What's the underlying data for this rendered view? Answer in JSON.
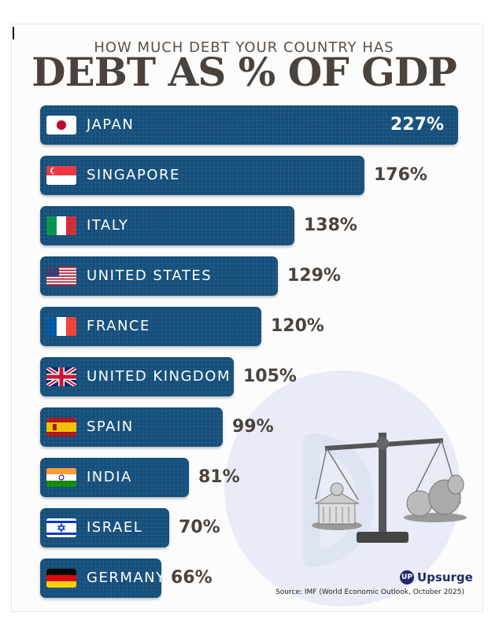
{
  "header": {
    "subtitle": "HOW MUCH DEBT YOUR COUNTRY HAS",
    "title": "DEBT AS % OF GDP"
  },
  "colors": {
    "bar": "#154f7b",
    "value_text": "#4a423c",
    "title_text": "#4a423c"
  },
  "chart_data": {
    "type": "bar",
    "orientation": "horizontal",
    "title": "DEBT AS % OF GDP",
    "subtitle": "HOW MUCH DEBT YOUR COUNTRY HAS",
    "categories": [
      "JAPAN",
      "SINGAPORE",
      "ITALY",
      "UNITED STATES",
      "FRANCE",
      "UNITED KINGDOM",
      "SPAIN",
      "INDIA",
      "ISRAEL",
      "GERMANY"
    ],
    "values": [
      227,
      176,
      138,
      129,
      120,
      105,
      99,
      81,
      70,
      66
    ],
    "value_labels": [
      "227%",
      "176%",
      "138%",
      "129%",
      "120%",
      "105%",
      "99%",
      "81%",
      "70%",
      "66%"
    ],
    "flags": [
      "japan-flag",
      "singapore-flag",
      "italy-flag",
      "us-flag",
      "france-flag",
      "uk-flag",
      "spain-flag",
      "india-flag",
      "israel-flag",
      "germany-flag"
    ],
    "xlabel": "",
    "ylabel": "",
    "grid": false,
    "legend": "none"
  },
  "footer": {
    "brand": "Upsurge",
    "brand_mark": "UP",
    "source": "Source: IMF (World Economic Outlook, October 2025)"
  }
}
